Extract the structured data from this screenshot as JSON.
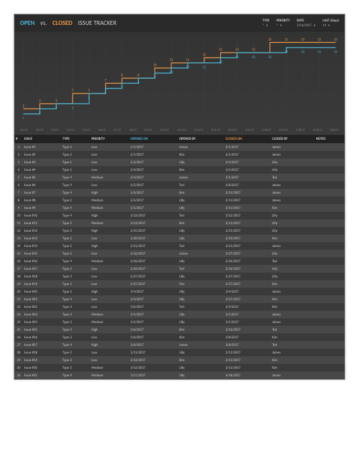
{
  "header": {
    "open": "OPEN",
    "vs": "vs.",
    "closed": "CLOSED",
    "tracker": "ISSUE TRACKER"
  },
  "filters": [
    {
      "label": "TYPE",
      "value": "*"
    },
    {
      "label": "PRIORITY",
      "value": "*"
    },
    {
      "label": "DATE",
      "value": "3/16/2017"
    },
    {
      "label": "LAST (days)",
      "value": "14"
    }
  ],
  "chart": {
    "open_color": "#4db8d8",
    "closed_color": "#e89848",
    "label_color": "#e89848",
    "label_color2": "#4db8d8",
    "bg": "#333",
    "grid": "#444",
    "opened": [
      1,
      2,
      3,
      3,
      5,
      6,
      7,
      8,
      9,
      10,
      11,
      11,
      12,
      13,
      13,
      13,
      14,
      14,
      14,
      14
    ],
    "closed": [
      2,
      3,
      3,
      5,
      5,
      7,
      8,
      8,
      10,
      11,
      11,
      12,
      13,
      13,
      13,
      15,
      15,
      15,
      15,
      15
    ],
    "xlabels": [
      "3/1/17",
      "3/2/17",
      "3/3/17",
      "3/4/17",
      "3/5/17",
      "3/6/17",
      "3/7/17",
      "3/8/17",
      "3/9/17",
      "3/10/17",
      "3/11/17",
      "3/12/17",
      "3/13/17",
      "3/14/17",
      "3/15/17",
      "3/16/17",
      "3/17/17",
      "3/18/17",
      "3/19/17",
      "3/20/17"
    ],
    "ymax": 16
  },
  "table": {
    "cols": [
      "#",
      "ISSUE",
      "TYPE",
      "PRIORITY",
      "OPENED ON",
      "OPENED BY",
      "CLOSED ON",
      "CLOSED BY",
      "NOTES"
    ],
    "rows": [
      [
        "1",
        "Issue #1",
        "Type 2",
        "Low",
        "2/1/2017",
        "James",
        "2/1/2017",
        "James",
        ""
      ],
      [
        "2",
        "Issue #2",
        "Type 2",
        "Low",
        "2/1/2017",
        "Kim",
        "2/1/2017",
        "James",
        ""
      ],
      [
        "3",
        "Issue #3",
        "Type 1",
        "Low",
        "2/3/2017",
        "Lilly",
        "2/4/2017",
        "Lilly",
        ""
      ],
      [
        "4",
        "Issue #4",
        "Type 1",
        "Low",
        "2/4/2017",
        "Kim",
        "2/5/2017",
        "Lilly",
        ""
      ],
      [
        "5",
        "Issue #5",
        "Type 4",
        "Medium",
        "2/4/2017",
        "James",
        "3/1/2017",
        "Ted",
        ""
      ],
      [
        "6",
        "Issue #6",
        "Type 4",
        "Low",
        "2/5/2017",
        "Ted",
        "2/8/2017",
        "James",
        ""
      ],
      [
        "7",
        "Issue #7",
        "Type 4",
        "High",
        "3/3/2017",
        "Kim",
        "2/13/2017",
        "James",
        ""
      ],
      [
        "8",
        "Issue #8",
        "Type 2",
        "Medium",
        "2/5/2017",
        "Lilly",
        "2/11/2017",
        "James",
        ""
      ],
      [
        "9",
        "Issue #9",
        "Type 4",
        "Medium",
        "2/5/2017",
        "Lilly",
        "2/11/2017",
        "Kim",
        ""
      ],
      [
        "10",
        "Issue #10",
        "Type 4",
        "High",
        "2/12/2017",
        "Ted",
        "2/12/2017",
        "Lilly",
        ""
      ],
      [
        "11",
        "Issue #11",
        "Type 2",
        "Medium",
        "2/13/2017",
        "Kim",
        "2/13/2017",
        "Lilly",
        ""
      ],
      [
        "12",
        "Issue #12",
        "Type 3",
        "High",
        "2/15/2017",
        "Lilly",
        "2/15/2017",
        "Lilly",
        ""
      ],
      [
        "13",
        "Issue #13",
        "Type 2",
        "Low",
        "2/20/2017",
        "Lilly",
        "2/20/2017",
        "Kim",
        ""
      ],
      [
        "14",
        "Issue #14",
        "Type 2",
        "High",
        "2/21/2017",
        "Ted",
        "2/21/2017",
        "James",
        ""
      ],
      [
        "15",
        "Issue #15",
        "Type 2",
        "Low",
        "2/26/2017",
        "James",
        "2/27/2017",
        "Lilly",
        ""
      ],
      [
        "16",
        "Issue #16",
        "Type 4",
        "Medium",
        "2/26/2017",
        "Lilly",
        "2/26/2017",
        "Ted",
        ""
      ],
      [
        "17",
        "Issue #17",
        "Type 2",
        "Low",
        "2/26/2017",
        "Ted",
        "2/26/2017",
        "Lilly",
        ""
      ],
      [
        "18",
        "Issue #18",
        "Type 3",
        "Low",
        "2/27/2017",
        "Lilly",
        "2/27/2017",
        "Lilly",
        ""
      ],
      [
        "19",
        "Issue #19",
        "Type 2",
        "Low",
        "2/27/2017",
        "Ted",
        "2/27/2017",
        "Kim",
        ""
      ],
      [
        "20",
        "Issue #20",
        "Type 2",
        "High",
        "3/4/2017",
        "Lilly",
        "3/4/2017",
        "James",
        ""
      ],
      [
        "21",
        "Issue #21",
        "Type 4",
        "Low",
        "3/4/2017",
        "Lilly",
        "3/27/2017",
        "Kim",
        ""
      ],
      [
        "22",
        "Issue #22",
        "Type 3",
        "Low",
        "3/6/2017",
        "Ted",
        "3/9/2017",
        "Kim",
        ""
      ],
      [
        "23",
        "Issue #23",
        "Type 3",
        "Medium",
        "3/5/2017",
        "Lilly",
        "3/5/2017",
        "James",
        ""
      ],
      [
        "24",
        "Issue #24",
        "Type 3",
        "Medium",
        "3/5/2017",
        "Lilly",
        "3/5/2017",
        "James",
        ""
      ],
      [
        "25",
        "Issue #25",
        "Type 4",
        "High",
        "3/6/2017",
        "Kim",
        "3/10/2017",
        "Ted",
        ""
      ],
      [
        "26",
        "Issue #26",
        "Type 3",
        "Low",
        "3/6/2017",
        "Kim",
        "3/8/2017",
        "Kim",
        ""
      ],
      [
        "27",
        "Issue #27",
        "Type 4",
        "High",
        "3/6/2017",
        "James",
        "3/8/2017",
        "Ted",
        ""
      ],
      [
        "28",
        "Issue #28",
        "Type 3",
        "Low",
        "3/11/2017",
        "Lilly",
        "3/12/2017",
        "James",
        ""
      ],
      [
        "29",
        "Issue #29",
        "Type 3",
        "Low",
        "3/12/2017",
        "Kim",
        "3/13/2017",
        "Kim",
        ""
      ],
      [
        "30",
        "Issue #30",
        "Type 2",
        "Medium",
        "3/12/2017",
        "Lilly",
        "3/13/2017",
        "Kim",
        ""
      ],
      [
        "31",
        "Issue #31",
        "Type 4",
        "Medium",
        "3/17/2017",
        "Lilly",
        "3/18/2017",
        "James",
        ""
      ]
    ]
  }
}
